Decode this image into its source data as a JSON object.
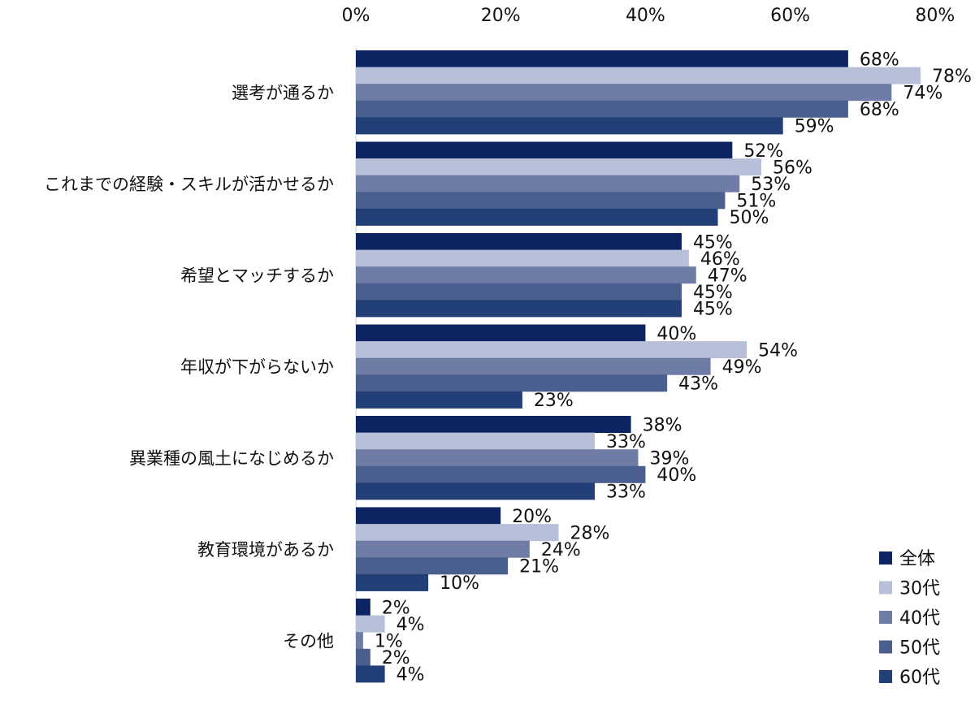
{
  "chart_data": {
    "type": "bar",
    "orientation": "horizontal",
    "categories": [
      "選考が通るか",
      "これまでの経験・スキルが活かせるか",
      "希望とマッチするか",
      "年収が下がらないか",
      "異業種の風土になじめるか",
      "教育環境があるか",
      "その他"
    ],
    "series": [
      {
        "name": "全体",
        "color": "#0c2461",
        "values": [
          68,
          52,
          45,
          40,
          38,
          20,
          2
        ]
      },
      {
        "name": "30代",
        "color": "#b7bfd9",
        "values": [
          78,
          56,
          46,
          54,
          33,
          28,
          4
        ]
      },
      {
        "name": "40代",
        "color": "#6f7da6",
        "values": [
          74,
          53,
          47,
          49,
          39,
          24,
          1
        ]
      },
      {
        "name": "50代",
        "color": "#4a5f8d",
        "values": [
          68,
          51,
          45,
          43,
          40,
          21,
          2
        ]
      },
      {
        "name": "60代",
        "color": "#233f78",
        "values": [
          59,
          50,
          45,
          23,
          33,
          10,
          4
        ]
      }
    ],
    "xlim": [
      0,
      80
    ],
    "x_ticks": [
      "0%",
      "20%",
      "40%",
      "60%",
      "80%"
    ],
    "x_axis_position": "top",
    "value_suffix": "%",
    "grid": false,
    "legend_position": "bottom-right"
  }
}
